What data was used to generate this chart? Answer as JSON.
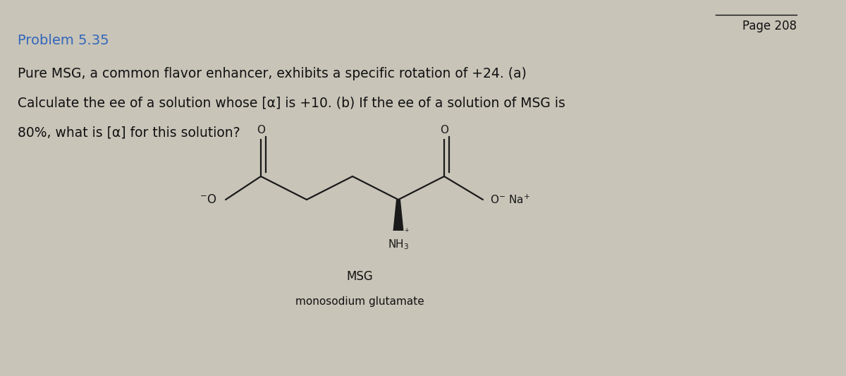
{
  "page_number": "Page 208",
  "problem_title": "Problem 5.35",
  "body_text_line1": "Pure MSG, a common flavor enhancer, exhibits a specific rotation of +24. (a)",
  "body_text_line2": "Calculate the ee of a solution whose [α] is +10. (b) If the ee of a solution of MSG is",
  "body_text_line3": "80%, what is [α] for this solution?",
  "label_msg": "MSG",
  "label_full": "monosodium glutamate",
  "background_color": "#c8c4b8",
  "page_bg": "#f0eeea",
  "title_color": "#3366bb",
  "text_color": "#111111",
  "page_num_color": "#111111",
  "title_fontsize": 14,
  "body_fontsize": 13.5,
  "label_fontsize": 11,
  "struct_fontsize": 11
}
